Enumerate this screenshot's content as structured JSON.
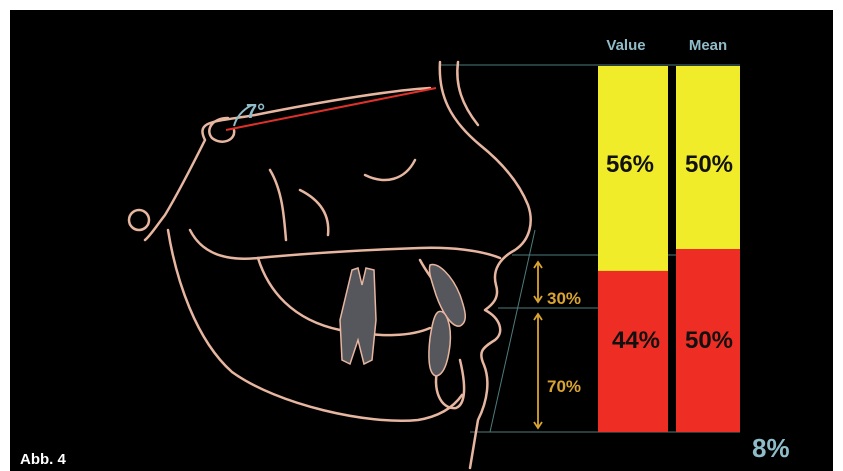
{
  "figure_label": "Abb. 4",
  "angle_label": "7°",
  "columns": {
    "value_header": "Value",
    "mean_header": "Mean"
  },
  "value_column": {
    "upper": {
      "label": "56%",
      "percent": 56
    },
    "lower": {
      "label": "44%",
      "percent": 44
    }
  },
  "mean_column": {
    "upper": {
      "label": "50%",
      "percent": 50
    },
    "lower": {
      "label": "50%",
      "percent": 50
    }
  },
  "lower_split": {
    "upper": {
      "label": "30%",
      "percent": 30
    },
    "lower": {
      "label": "70%",
      "percent": 70
    }
  },
  "difference_label": "8%",
  "colors": {
    "upper_segment": "#f0ec2a",
    "lower_segment": "#ee2e24",
    "outline": "#e7b6a0",
    "teeth": "#55575c",
    "measure_line": "#d9a431",
    "angle_line": "#e0302a",
    "accent_text": "#8fbcc8"
  }
}
